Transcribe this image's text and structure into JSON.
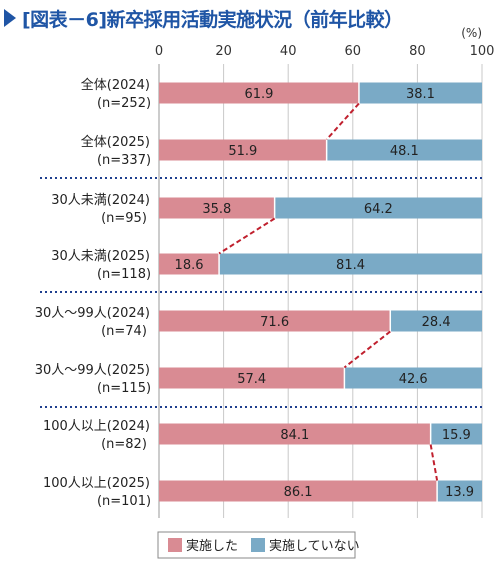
{
  "title": "[図表－6]新卒採用活動実施状況（前年比較）",
  "chart_data": {
    "type": "bar",
    "stacked": true,
    "orientation": "horizontal",
    "unit": "(%)",
    "xlim": [
      0,
      100
    ],
    "xticks": [
      0,
      20,
      40,
      60,
      80,
      100
    ],
    "categories": [
      [
        "全体(2024)",
        "(n=252)"
      ],
      [
        "全体(2025)",
        "(n=337)"
      ],
      [
        "30人未満(2024)",
        "(n=95)"
      ],
      [
        "30人未満(2025)",
        "(n=118)"
      ],
      [
        "30人～99人(2024)",
        "(n=74)"
      ],
      [
        "30人～99人(2025)",
        "(n=115)"
      ],
      [
        "100人以上(2024)",
        "(n=82)"
      ],
      [
        "100人以上(2025)",
        "(n=101)"
      ]
    ],
    "series": [
      {
        "name": "実施した",
        "color": "#d98b93",
        "values": [
          61.9,
          51.9,
          35.8,
          18.6,
          71.6,
          57.4,
          84.1,
          86.1
        ]
      },
      {
        "name": "実施していない",
        "color": "#7aaac6",
        "values": [
          38.1,
          48.1,
          64.2,
          81.4,
          28.4,
          42.6,
          15.9,
          13.9
        ]
      }
    ],
    "value_labels": [
      [
        "61.9",
        "38.1"
      ],
      [
        "51.9",
        "48.1"
      ],
      [
        "35.8",
        "64.2"
      ],
      [
        "18.6",
        "81.4"
      ],
      [
        "71.6",
        "28.4"
      ],
      [
        "57.4",
        "42.6"
      ],
      [
        "84.1",
        "15.9"
      ],
      [
        "86.1",
        "13.9"
      ]
    ],
    "connector_color": "#c0202e",
    "divider_color": "#1f3f8f",
    "legend_position": "bottom-center",
    "grid": true
  }
}
